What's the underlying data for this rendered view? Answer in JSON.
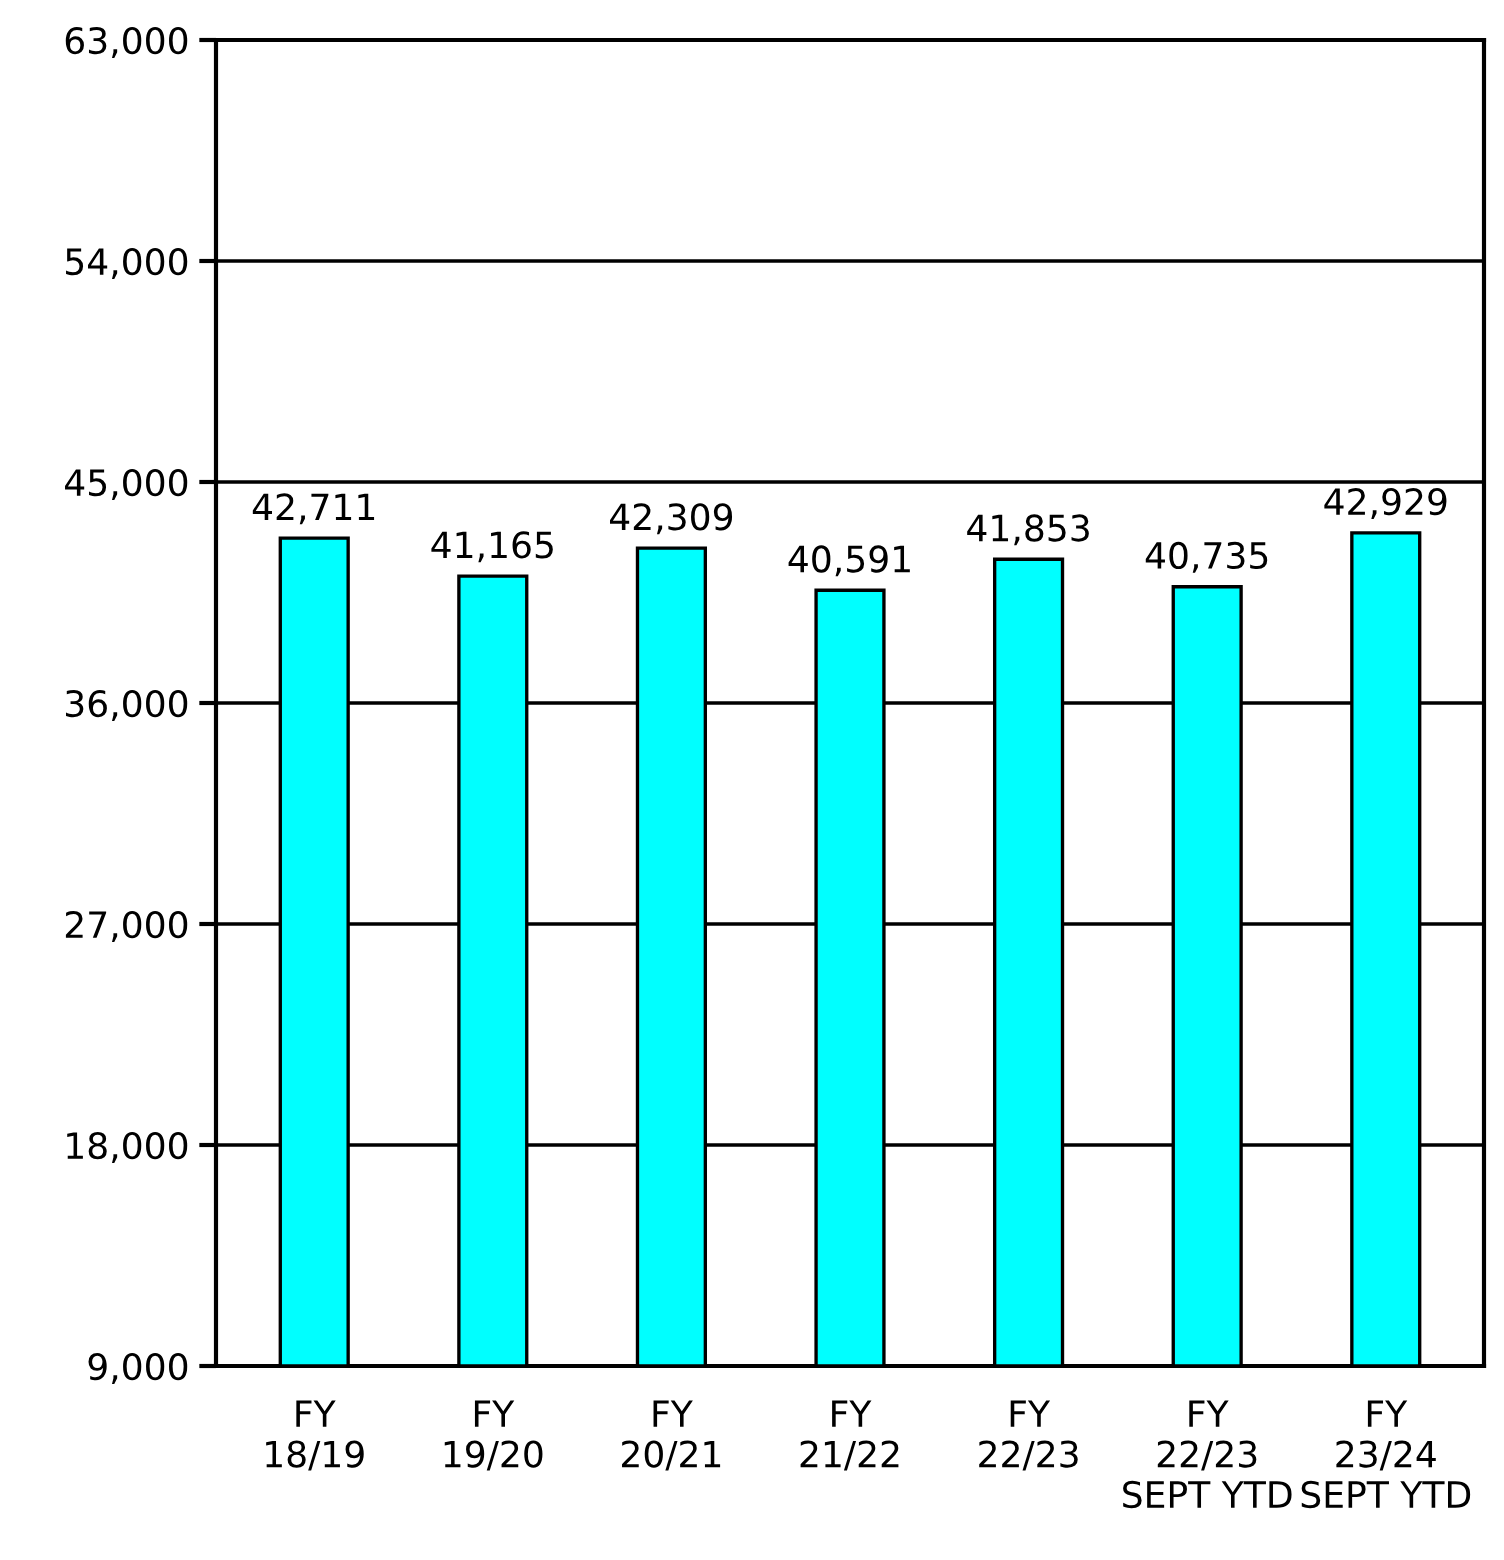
{
  "chart_data": {
    "type": "bar",
    "categories": [
      "FY\n18/19",
      "FY\n19/20",
      "FY\n20/21",
      "FY\n21/22",
      "FY\n22/23",
      "FY\n22/23\nSEPT YTD",
      "FY\n23/24\nSEPT YTD"
    ],
    "values": [
      42711,
      41165,
      42309,
      40591,
      41853,
      40735,
      42929
    ],
    "value_labels": [
      "42,711",
      "41,165",
      "42,309",
      "40,591",
      "41,853",
      "40,735",
      "42,929"
    ],
    "color": "#00ffff",
    "ylim": [
      9000,
      63000
    ],
    "yticks": [
      {
        "value": 9000,
        "label": "9,000"
      },
      {
        "value": 18000,
        "label": "18,000"
      },
      {
        "value": 27000,
        "label": "27,000"
      },
      {
        "value": 36000,
        "label": "36,000"
      },
      {
        "value": 45000,
        "label": "45,000"
      },
      {
        "value": 54000,
        "label": "54,000"
      },
      {
        "value": 63000,
        "label": "63,000"
      }
    ],
    "grid": "y"
  }
}
